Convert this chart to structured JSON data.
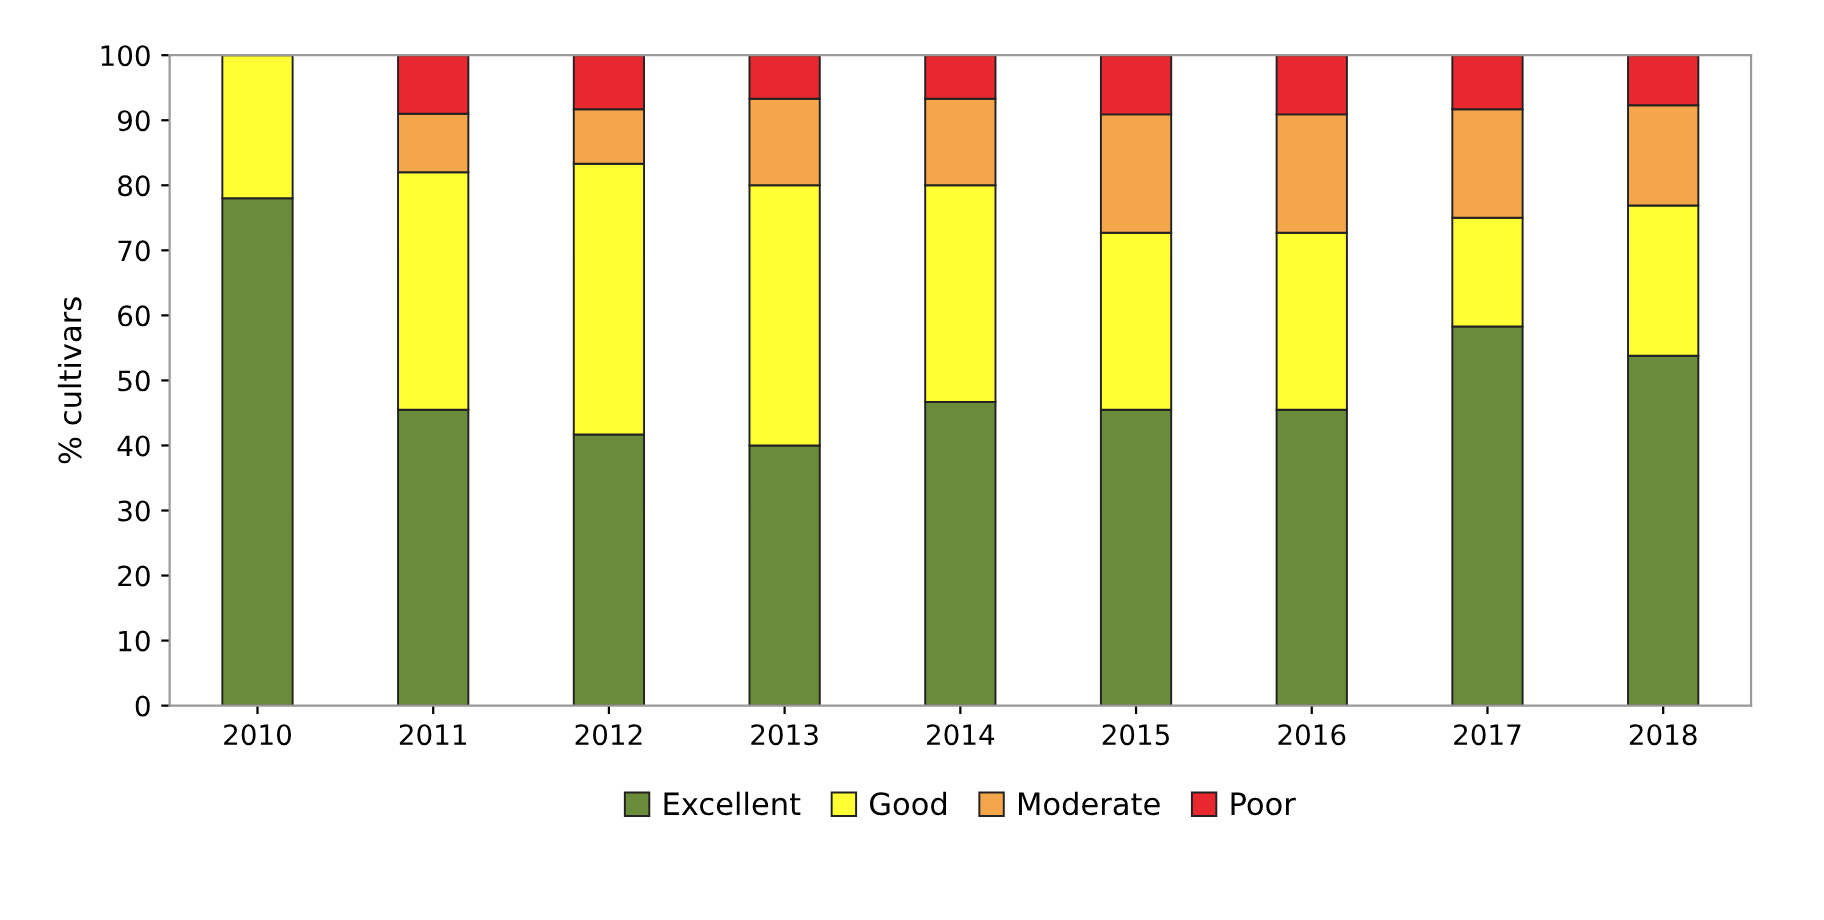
{
  "chart_data": {
    "type": "bar",
    "stacked": true,
    "ylabel": "% cultivars",
    "categories": [
      "2010",
      "2011",
      "2012",
      "2013",
      "2014",
      "2015",
      "2016",
      "2017",
      "2018"
    ],
    "series": [
      {
        "name": "Excellent",
        "color": "#6a8c3a",
        "values": [
          78,
          45.5,
          41.7,
          40,
          46.7,
          45.5,
          45.5,
          58.3,
          53.8
        ]
      },
      {
        "name": "Good",
        "color": "#ffff33",
        "values": [
          22,
          36.5,
          41.6,
          40,
          33.3,
          27.2,
          27.2,
          16.7,
          23.1
        ]
      },
      {
        "name": "Moderate",
        "color": "#f5a54a",
        "values": [
          null,
          9,
          8.4,
          13.3,
          13.3,
          18.2,
          18.2,
          16.7,
          15.4
        ]
      },
      {
        "name": "Poor",
        "color": "#e8272e",
        "values": [
          null,
          9,
          8.3,
          6.7,
          6.7,
          9.1,
          9.1,
          8.3,
          7.7
        ]
      }
    ],
    "ylim": [
      0,
      100
    ],
    "yticks": [
      0,
      10,
      20,
      30,
      40,
      50,
      60,
      70,
      80,
      90,
      100
    ],
    "grid": false,
    "legend": "bottom"
  }
}
